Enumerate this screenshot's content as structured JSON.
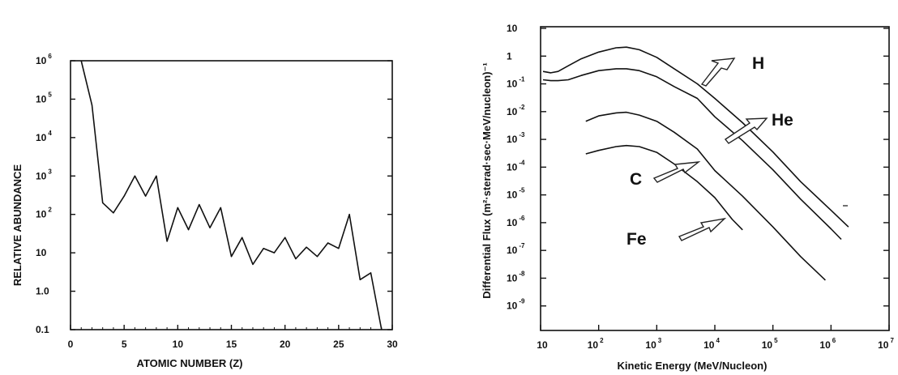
{
  "chart_data": [
    {
      "type": "line",
      "title": "",
      "xlabel": "ATOMIC NUMBER (Z)",
      "ylabel": "RELATIVE ABUNDANCE",
      "xlim": [
        0,
        30
      ],
      "ylim": [
        0.1,
        1000000
      ],
      "yscale": "log",
      "grid": false,
      "x_ticks": [
        "0",
        "5",
        "10",
        "15",
        "20",
        "25",
        "30"
      ],
      "y_ticks": [
        {
          "base": "10",
          "exp": "6"
        },
        {
          "base": "10",
          "exp": "5"
        },
        {
          "base": "10",
          "exp": "4"
        },
        {
          "base": "10",
          "exp": "3"
        },
        {
          "base": "10",
          "exp": "2"
        },
        {
          "base": "10",
          "exp": ""
        },
        {
          "base": "1.0",
          "exp": ""
        },
        {
          "base": "0.1",
          "exp": ""
        }
      ],
      "series": [
        {
          "x": [
            1,
            2,
            3,
            4,
            5,
            6,
            7,
            8,
            9,
            10,
            11,
            12,
            13,
            14,
            15,
            16,
            17,
            18,
            19,
            20,
            21,
            22,
            23,
            24,
            25,
            26,
            27,
            28,
            29
          ],
          "values": [
            1000000,
            70000,
            200,
            110,
            300,
            1000,
            300,
            1000,
            20,
            150,
            40,
            180,
            45,
            150,
            8,
            25,
            5,
            13,
            10,
            25,
            7,
            14,
            8,
            18,
            13,
            100,
            2,
            3,
            0.1
          ]
        }
      ]
    },
    {
      "type": "line",
      "title": "",
      "xlabel": "Kinetic Energy (MeV/Nucleon)",
      "ylabel": "Differential Flux (m²·sterad·sec·MeV/nucleon)⁻¹",
      "xlim": [
        10,
        10000000
      ],
      "ylim": [
        1e-10,
        10
      ],
      "xscale": "log",
      "yscale": "log",
      "grid": false,
      "x_ticks": [
        {
          "base": "10",
          "exp": ""
        },
        {
          "base": "10",
          "exp": "2"
        },
        {
          "base": "10",
          "exp": "3"
        },
        {
          "base": "10",
          "exp": "4"
        },
        {
          "base": "10",
          "exp": "5"
        },
        {
          "base": "10",
          "exp": "6"
        },
        {
          "base": "10",
          "exp": "7"
        }
      ],
      "y_ticks": [
        {
          "base": "10",
          "exp": ""
        },
        {
          "base": "1",
          "exp": ""
        },
        {
          "base": "10",
          "exp": "-1"
        },
        {
          "base": "10",
          "exp": "-2"
        },
        {
          "base": "10",
          "exp": "-3"
        },
        {
          "base": "10",
          "exp": "-4"
        },
        {
          "base": "10",
          "exp": "-5"
        },
        {
          "base": "10",
          "exp": "-6"
        },
        {
          "base": "10",
          "exp": "-7"
        },
        {
          "base": "10",
          "exp": "-8"
        },
        {
          "base": "10",
          "exp": "-9"
        }
      ],
      "series": [
        {
          "name": "H",
          "x": [
            11,
            15,
            20,
            30,
            50,
            100,
            200,
            300,
            500,
            1000,
            2000,
            5000,
            10000,
            30000,
            100000,
            300000,
            1000000,
            2000000
          ],
          "values": [
            0.28,
            0.25,
            0.28,
            0.45,
            0.8,
            1.4,
            2,
            2.1,
            1.7,
            0.9,
            0.35,
            0.1,
            0.03,
            0.004,
            0.00035,
            3e-05,
            2.8e-06,
            7e-07
          ]
        },
        {
          "name": "He",
          "x": [
            11,
            15,
            20,
            30,
            50,
            100,
            200,
            300,
            500,
            1000,
            2000,
            5000,
            10000,
            30000,
            100000,
            300000,
            1000000,
            1500000
          ],
          "values": [
            0.14,
            0.13,
            0.13,
            0.14,
            0.2,
            0.3,
            0.35,
            0.35,
            0.3,
            0.18,
            0.08,
            0.03,
            0.0065,
            0.0009,
            8e-05,
            7e-06,
            6e-07,
            2.5e-07
          ]
        },
        {
          "name": "C",
          "x": [
            60,
            100,
            200,
            300,
            500,
            1000,
            2000,
            5000,
            10000,
            30000,
            100000,
            300000,
            800000
          ],
          "values": [
            0.0045,
            0.007,
            0.009,
            0.0095,
            0.0075,
            0.0045,
            0.0018,
            0.00045,
            7.5e-05,
            9e-06,
            7e-07,
            6e-08,
            8.5e-09
          ]
        },
        {
          "name": "Fe",
          "x": [
            60,
            100,
            200,
            300,
            500,
            1000,
            2000,
            5000,
            10000,
            20000,
            30000
          ],
          "values": [
            0.0003,
            0.0004,
            0.00055,
            0.0006,
            0.00055,
            0.00034,
            0.00013,
            3e-05,
            8e-06,
            1.3e-06,
            5.5e-07
          ]
        }
      ]
    }
  ]
}
